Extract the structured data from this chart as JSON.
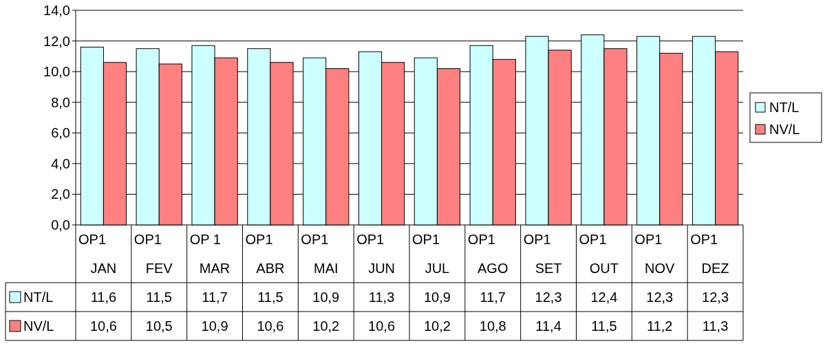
{
  "chart_data": {
    "type": "bar",
    "categories": [
      "OP1\nJAN",
      "OP1\nFEV",
      "OP 1\nMAR",
      "OP1\nABR",
      "OP1\nMAI",
      "OP1\nJUN",
      "OP1\nJUL",
      "OP1\nAGO",
      "OP1\nSET",
      "OP1\nOUT",
      "OP1\nNOV",
      "OP1\nDEZ"
    ],
    "series": [
      {
        "name": "NT/L",
        "color": "#ccffff",
        "values": [
          11.6,
          11.5,
          11.7,
          11.5,
          10.9,
          11.3,
          10.9,
          11.7,
          12.3,
          12.4,
          12.3,
          12.3
        ],
        "value_labels": [
          "11,6",
          "11,5",
          "11,7",
          "11,5",
          "10,9",
          "11,3",
          "10,9",
          "11,7",
          "12,3",
          "12,4",
          "12,3",
          "12,3"
        ]
      },
      {
        "name": "NV/L",
        "color": "#ff8080",
        "values": [
          10.6,
          10.5,
          10.9,
          10.6,
          10.2,
          10.6,
          10.2,
          10.8,
          11.4,
          11.5,
          11.2,
          11.3
        ],
        "value_labels": [
          "10,6",
          "10,5",
          "10,9",
          "10,6",
          "10,2",
          "10,6",
          "10,2",
          "10,8",
          "11,4",
          "11,5",
          "11,2",
          "11,3"
        ]
      }
    ],
    "ylim": [
      0,
      14
    ],
    "yticks": [
      {
        "value": 0,
        "label": "0,0"
      },
      {
        "value": 2,
        "label": "2,0"
      },
      {
        "value": 4,
        "label": "4,0"
      },
      {
        "value": 6,
        "label": "6,0"
      },
      {
        "value": 8,
        "label": "8,0"
      },
      {
        "value": 10,
        "label": "10,0"
      },
      {
        "value": 12,
        "label": "12,0"
      },
      {
        "value": 14,
        "label": "14,0"
      }
    ],
    "grid": "y",
    "legend": "right"
  }
}
